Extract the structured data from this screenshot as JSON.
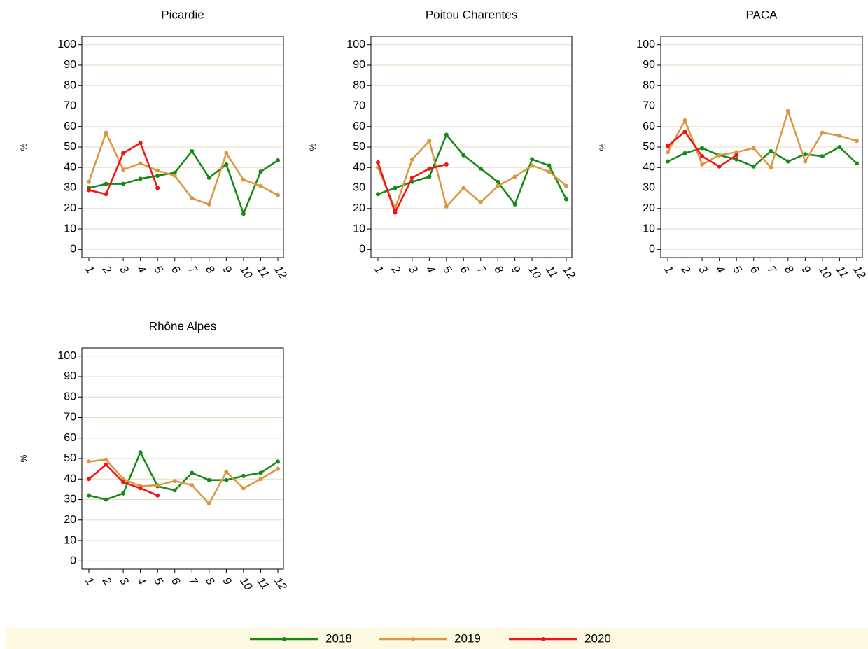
{
  "chart_data": [
    {
      "type": "line",
      "title": "Picardie",
      "ylabel": "%",
      "categories": [
        "1",
        "2",
        "3",
        "4",
        "5",
        "6",
        "7",
        "8",
        "9",
        "10",
        "11",
        "12"
      ],
      "ylim": [
        -4,
        104
      ],
      "yticks": [
        0,
        10,
        20,
        30,
        40,
        50,
        60,
        70,
        80,
        90,
        100
      ],
      "grid": true,
      "series": [
        {
          "name": "2018",
          "color": "#138a13",
          "values": [
            30,
            32,
            32,
            34.5,
            36,
            37.5,
            48,
            35,
            41.5,
            17.5,
            38,
            43.5
          ]
        },
        {
          "name": "2019",
          "color": "#db9642",
          "values": [
            33,
            57,
            39,
            42,
            38.5,
            36,
            25,
            22,
            47,
            34,
            31,
            26.5
          ]
        },
        {
          "name": "2020",
          "color": "#f01414",
          "values": [
            29,
            27,
            47,
            52,
            30,
            null,
            null,
            null,
            null,
            null,
            null,
            null
          ]
        }
      ]
    },
    {
      "type": "line",
      "title": "Poitou Charentes",
      "ylabel": "%",
      "categories": [
        "1",
        "2",
        "3",
        "4",
        "5",
        "6",
        "7",
        "8",
        "9",
        "10",
        "11",
        "12"
      ],
      "ylim": [
        -4,
        104
      ],
      "yticks": [
        0,
        10,
        20,
        30,
        40,
        50,
        60,
        70,
        80,
        90,
        100
      ],
      "grid": true,
      "series": [
        {
          "name": "2018",
          "color": "#138a13",
          "values": [
            27,
            30,
            33,
            35.5,
            56,
            46,
            39.5,
            33,
            22,
            44,
            41,
            24.5
          ]
        },
        {
          "name": "2019",
          "color": "#db9642",
          "values": [
            40,
            20,
            44,
            53,
            21,
            30,
            23,
            31,
            35.5,
            41,
            38,
            31
          ]
        },
        {
          "name": "2020",
          "color": "#f01414",
          "values": [
            42.5,
            18,
            35,
            39.5,
            41.5,
            null,
            null,
            null,
            null,
            null,
            null,
            null
          ]
        }
      ]
    },
    {
      "type": "line",
      "title": "PACA",
      "ylabel": "%",
      "categories": [
        "1",
        "2",
        "3",
        "4",
        "5",
        "6",
        "7",
        "8",
        "9",
        "10",
        "11",
        "12"
      ],
      "ylim": [
        -4,
        104
      ],
      "yticks": [
        0,
        10,
        20,
        30,
        40,
        50,
        60,
        70,
        80,
        90,
        100
      ],
      "grid": true,
      "series": [
        {
          "name": "2018",
          "color": "#138a13",
          "values": [
            43,
            47,
            49.5,
            46,
            44,
            40.5,
            48,
            43,
            46.5,
            45.5,
            50,
            42
          ]
        },
        {
          "name": "2019",
          "color": "#db9642",
          "values": [
            47.5,
            63,
            41.5,
            46,
            47.5,
            49.5,
            40,
            67.5,
            43,
            57,
            55.5,
            53
          ]
        },
        {
          "name": "2020",
          "color": "#f01414",
          "values": [
            50.5,
            57.5,
            45.5,
            40.5,
            46,
            null,
            null,
            null,
            null,
            null,
            null,
            null
          ]
        }
      ]
    },
    {
      "type": "line",
      "title": "Rhône Alpes",
      "ylabel": "%",
      "categories": [
        "1",
        "2",
        "3",
        "4",
        "5",
        "6",
        "7",
        "8",
        "9",
        "10",
        "11",
        "12"
      ],
      "ylim": [
        -4,
        104
      ],
      "yticks": [
        0,
        10,
        20,
        30,
        40,
        50,
        60,
        70,
        80,
        90,
        100
      ],
      "grid": true,
      "series": [
        {
          "name": "2018",
          "color": "#138a13",
          "values": [
            32,
            30,
            33,
            53,
            36.5,
            34.5,
            43,
            39.5,
            39.5,
            41.5,
            43,
            48.5
          ]
        },
        {
          "name": "2019",
          "color": "#db9642",
          "values": [
            48.5,
            49.5,
            40,
            36.5,
            37,
            39,
            37,
            28,
            43.5,
            35.5,
            40,
            45
          ]
        },
        {
          "name": "2020",
          "color": "#f01414",
          "values": [
            40,
            47,
            38.5,
            35.5,
            32,
            null,
            null,
            null,
            null,
            null,
            null,
            null
          ]
        }
      ]
    }
  ]
}
